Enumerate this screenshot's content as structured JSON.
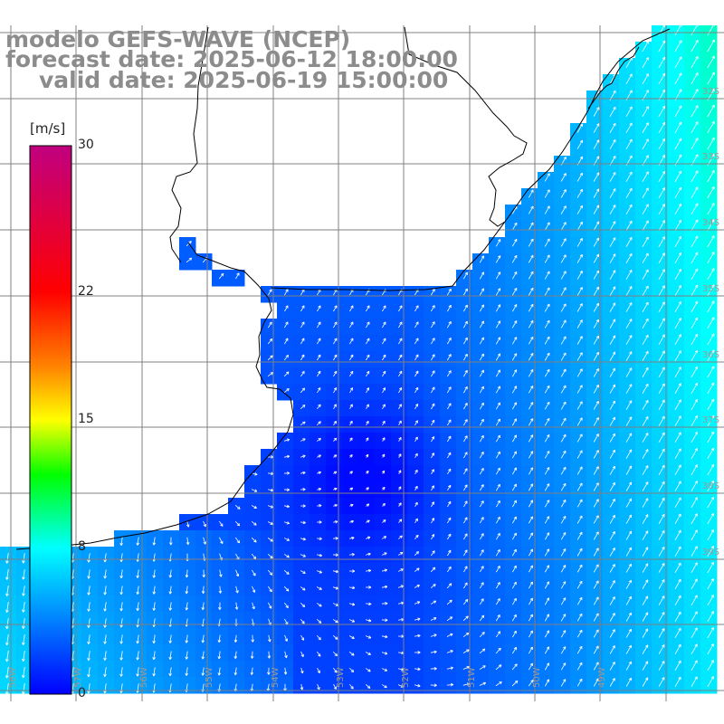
{
  "header": {
    "line1": "modelo GEFS-WAVE (NCEP)",
    "line2": "forecast date: 2025-06-12 18:00:00",
    "line3": "valid date: 2025-06-19 15:00:00"
  },
  "colorbar": {
    "unit": "[m/s]",
    "ticks": [
      {
        "value": 30,
        "label": "30"
      },
      {
        "value": 22,
        "label": "22"
      },
      {
        "value": 15,
        "label": "15"
      },
      {
        "value": 8,
        "label": "8"
      },
      {
        "value": 0,
        "label": "0"
      }
    ],
    "stops": [
      {
        "value": 0,
        "color": "#0000ff"
      },
      {
        "value": 8,
        "color": "#00ffff"
      },
      {
        "value": 12,
        "color": "#00ff00"
      },
      {
        "value": 15,
        "color": "#ffff00"
      },
      {
        "value": 18,
        "color": "#ff8000"
      },
      {
        "value": 22,
        "color": "#ff0000"
      },
      {
        "value": 30,
        "color": "#c00080"
      }
    ]
  },
  "map": {
    "variable": "wind speed and direction",
    "lat_labels": [
      "32S",
      "33S",
      "34S",
      "35S",
      "36S",
      "37S",
      "38S",
      "39S"
    ],
    "lon_labels": [
      "58W",
      "57W",
      "56W",
      "55W",
      "54W",
      "53W",
      "52W",
      "51W",
      "50W",
      "49W"
    ],
    "colors": {
      "land": "#ffffff",
      "coast": "#000000",
      "grid": "#808080",
      "arrow": "#ffffff"
    }
  }
}
